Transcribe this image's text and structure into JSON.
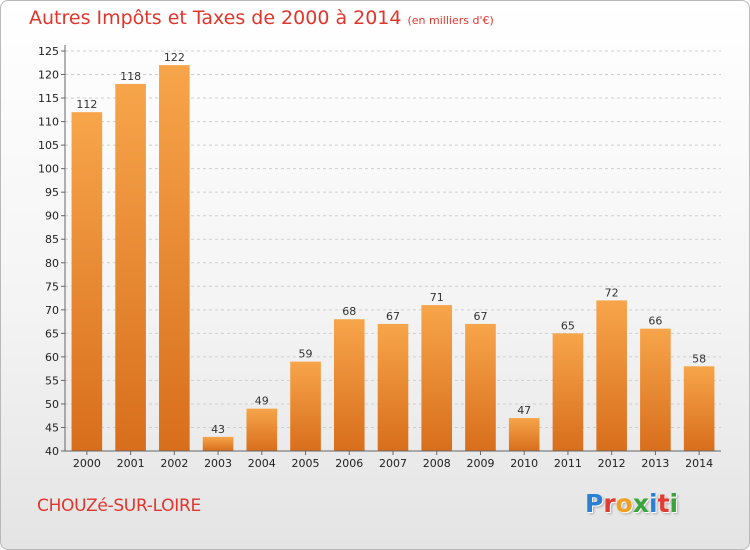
{
  "header": {
    "title": "Autres Impôts et Taxes de 2000 à 2014",
    "subtitle": "(en milliers d'€)"
  },
  "footer": {
    "commune": "CHOUZé-SUR-LOIRE",
    "logo_text": "Proxiti",
    "logo_colors": [
      "#2b7fd4",
      "#e03c31",
      "#f0a020",
      "#3aa63a",
      "#2b7fd4",
      "#e03c31",
      "#3aa63a"
    ]
  },
  "chart_data": {
    "type": "bar",
    "categories": [
      "2000",
      "2001",
      "2002",
      "2003",
      "2004",
      "2005",
      "2006",
      "2007",
      "2008",
      "2009",
      "2010",
      "2011",
      "2012",
      "2013",
      "2014"
    ],
    "values": [
      112,
      118,
      122,
      43,
      49,
      59,
      68,
      67,
      71,
      67,
      47,
      65,
      72,
      66,
      58
    ],
    "ylim": [
      40,
      125
    ],
    "yticks": [
      40,
      45,
      50,
      55,
      60,
      65,
      70,
      75,
      80,
      85,
      90,
      95,
      100,
      105,
      110,
      115,
      120,
      125
    ],
    "title": "Autres Impôts et Taxes de 2000 à 2014",
    "subtitle": "(en milliers d'€)",
    "grid": true,
    "bar_color_top": "#f7a54a",
    "bar_color_bottom": "#d86e1c"
  }
}
